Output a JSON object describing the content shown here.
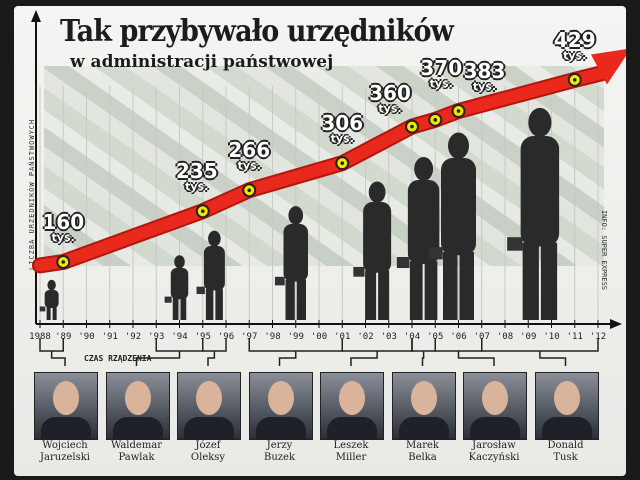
{
  "chart_data": {
    "type": "line",
    "title": "Tak przybywało urzędników",
    "subtitle": "w administracji państwowej",
    "ylabel": "LICZBA URZĘDNIKÓW PAŃSTWOWYCH",
    "source": "INFO: SUPER EXPRESS",
    "unit": "tys.",
    "x_ticks": [
      "1988",
      "'89",
      "'90",
      "'91",
      "'92",
      "'93",
      "'94",
      "'95",
      "'96",
      "'97",
      "'98",
      "'99",
      "'00",
      "'01",
      "'02",
      "'03",
      "'04",
      "'05",
      "'06",
      "'07",
      "'08",
      "'09",
      "'10",
      "'11",
      "'12"
    ],
    "points": [
      {
        "year": 1989,
        "value": 160,
        "label": "160"
      },
      {
        "year": 1995,
        "value": 235,
        "label": "235"
      },
      {
        "year": 1997,
        "value": 266,
        "label": "266"
      },
      {
        "year": 2001,
        "value": 306,
        "label": "306"
      },
      {
        "year": 2004,
        "value": 360,
        "label": "360"
      },
      {
        "year": 2005,
        "value": 370,
        "label": "370"
      },
      {
        "year": 2006,
        "value": 383,
        "label": "383"
      },
      {
        "year": 2011,
        "value": 429,
        "label": "429"
      }
    ],
    "reign_label": "CZAS RZĄDZENIA",
    "colors": {
      "line": "#e8291c",
      "marker": "#f2e600",
      "silhouette": "#2a2a2a"
    }
  },
  "leaders": [
    {
      "first": "Wojciech",
      "last": "Jaruzelski",
      "from": 1988,
      "to": 1989
    },
    {
      "first": "Waldemar",
      "last": "Pawlak",
      "from": 1993,
      "to": 1995
    },
    {
      "first": "Józef",
      "last": "Oleksy",
      "from": 1995,
      "to": 1996
    },
    {
      "first": "Jerzy",
      "last": "Buzek",
      "from": 1997,
      "to": 2001
    },
    {
      "first": "Leszek",
      "last": "Miller",
      "from": 2001,
      "to": 2004
    },
    {
      "first": "Marek",
      "last": "Belka",
      "from": 2004,
      "to": 2005
    },
    {
      "first": "Jarosław",
      "last": "Kaczyński",
      "from": 2005,
      "to": 2007
    },
    {
      "first": "Donald",
      "last": "Tusk",
      "from": 2007,
      "to": 2012
    }
  ]
}
